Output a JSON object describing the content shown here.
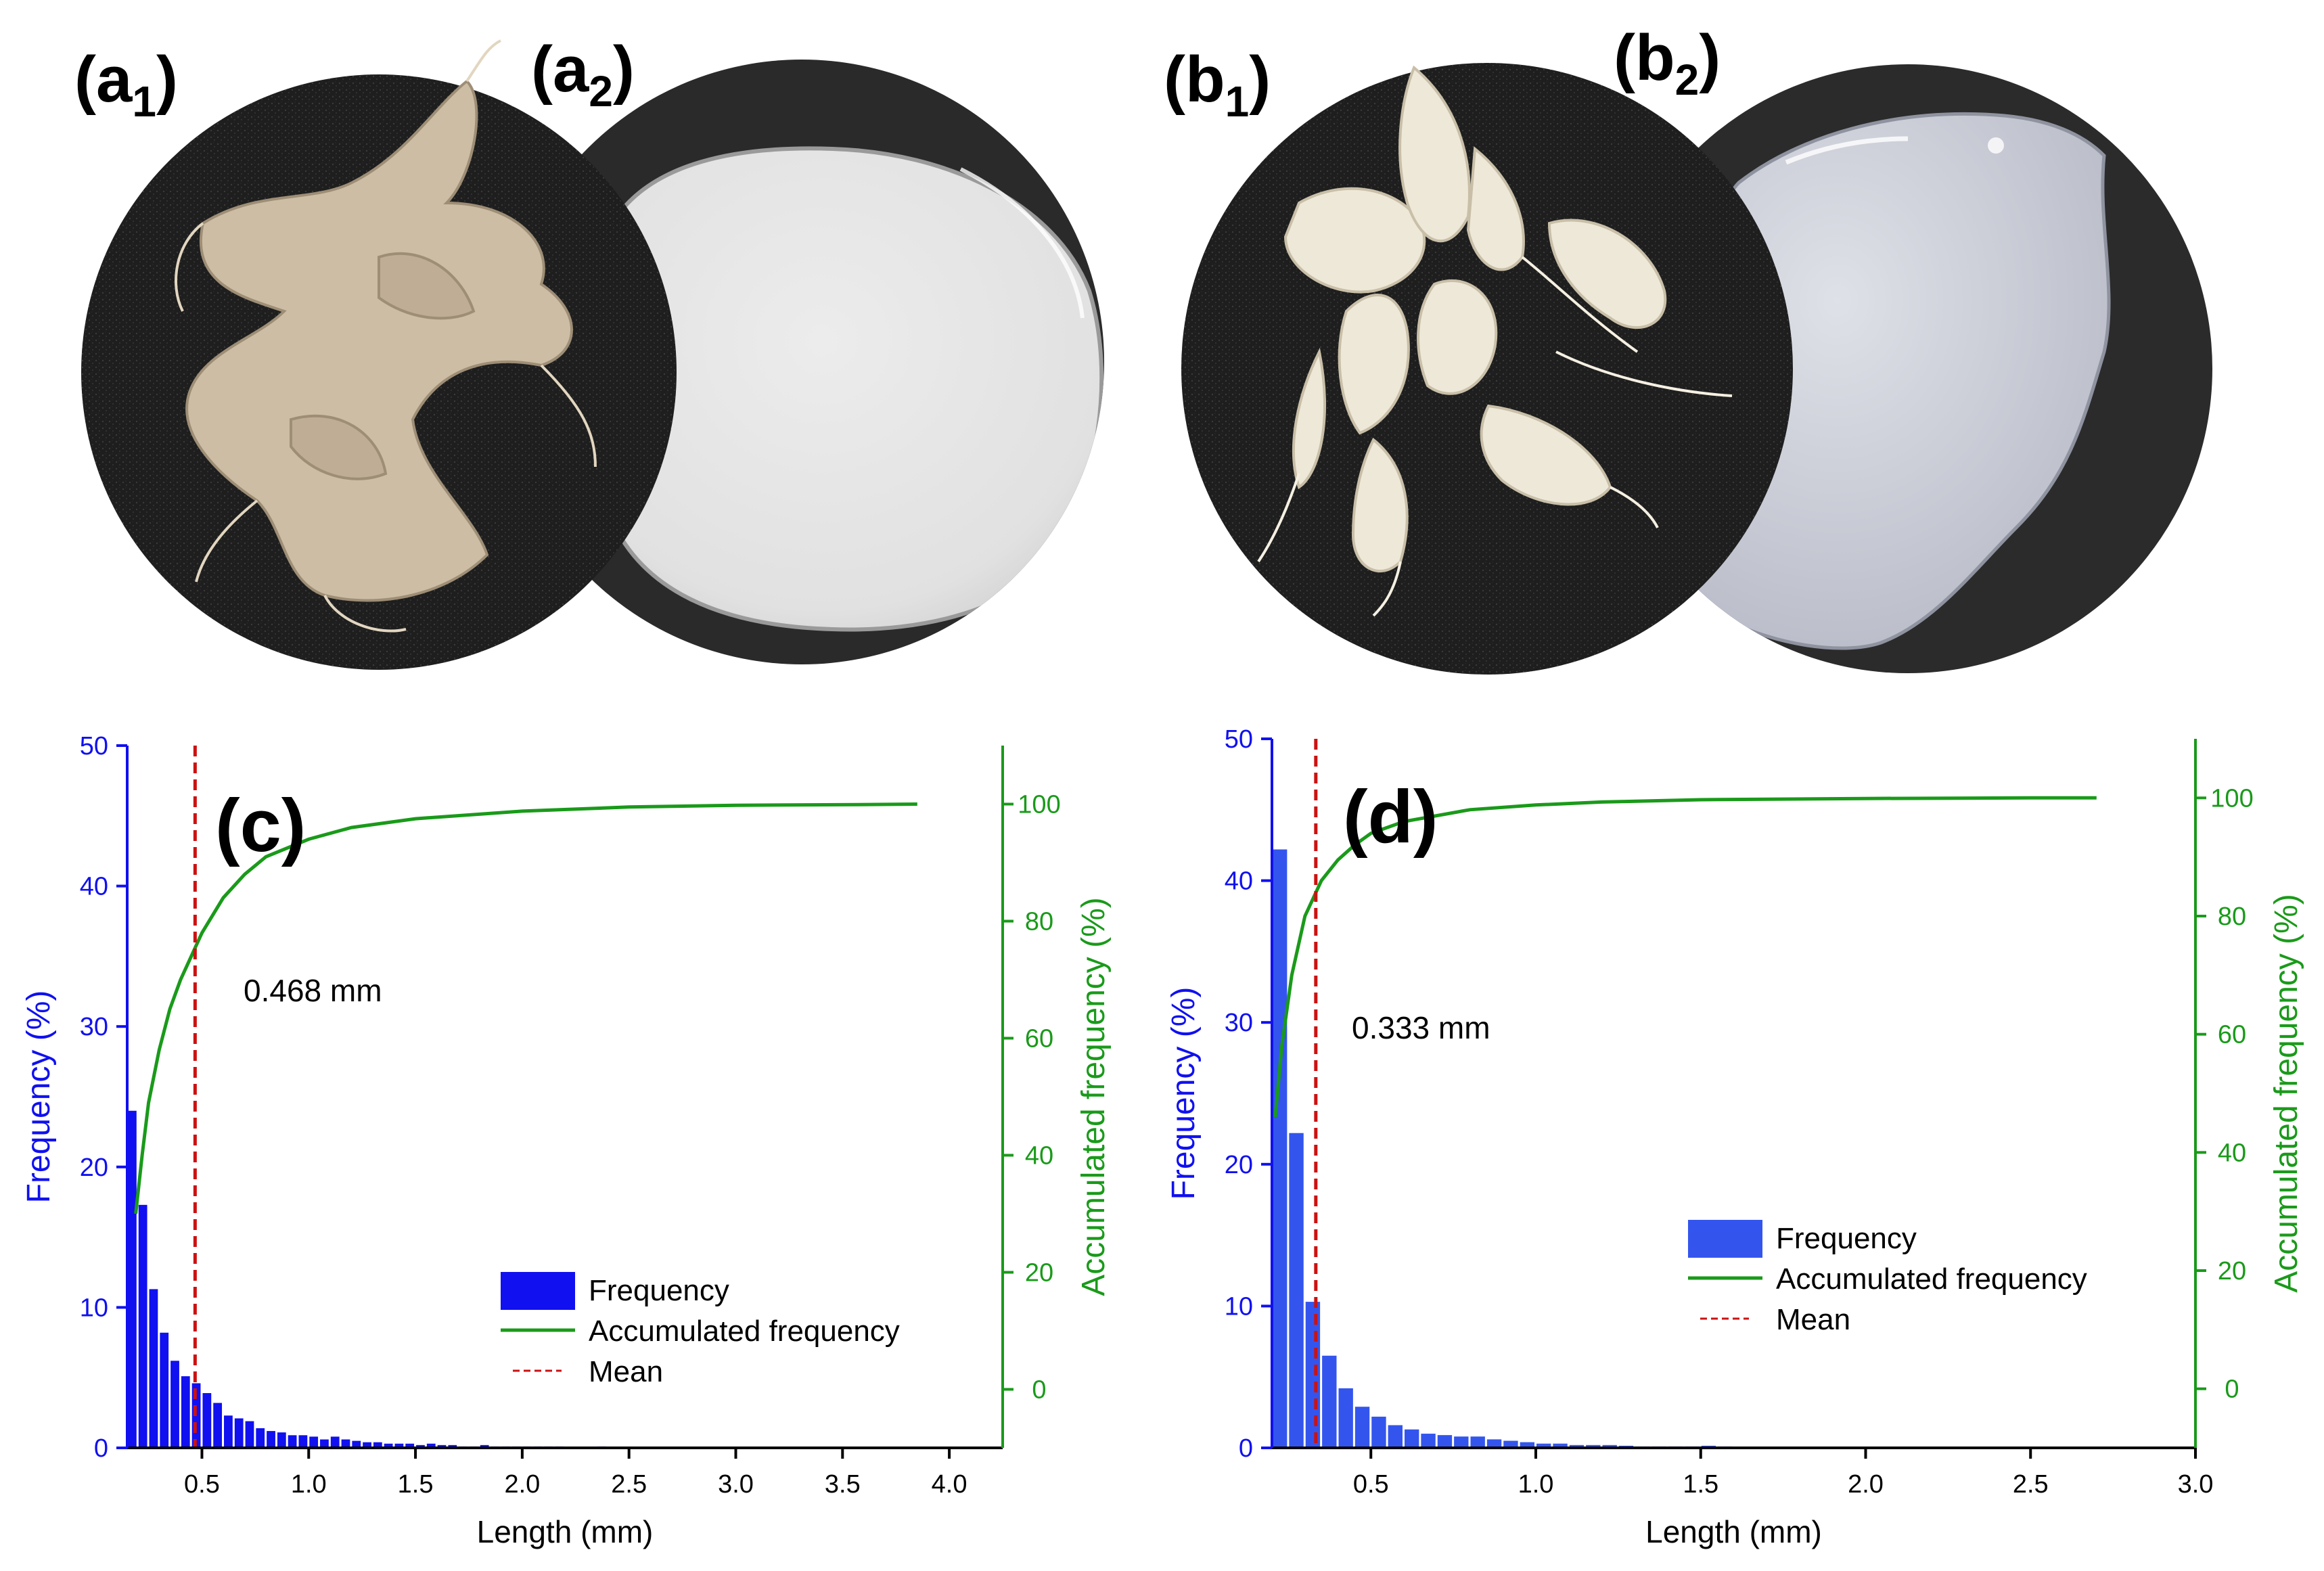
{
  "panels": {
    "a1": {
      "label": "a",
      "sub": "1"
    },
    "a2": {
      "label": "a",
      "sub": "2"
    },
    "b1": {
      "label": "b",
      "sub": "1"
    },
    "b2": {
      "label": "b",
      "sub": "2"
    },
    "c": "(c)",
    "d": "(d)"
  },
  "colors": {
    "frequency": "#1010f0",
    "frequency_d": "#3355ee",
    "accumulated": "#1a9a1a",
    "mean": "#cc1111"
  },
  "chart_data": [
    {
      "type": "bar",
      "panel": "(c)",
      "xlabel": "Length (mm)",
      "ylabel": "Frequency (%)",
      "y2label": "Accumulated frequency (%)",
      "xlim": [
        0.15,
        4.25
      ],
      "ylim": [
        0,
        50
      ],
      "y2lim": [
        -10,
        110
      ],
      "xticks": [
        "0.5",
        "1.0",
        "1.5",
        "2.0",
        "2.5",
        "3.0",
        "3.5",
        "4.0"
      ],
      "xtick_values": [
        0.5,
        1.0,
        1.5,
        2.0,
        2.5,
        3.0,
        3.5,
        4.0
      ],
      "yticks": [
        "0",
        "10",
        "20",
        "30",
        "40",
        "50"
      ],
      "y2ticks": [
        "0",
        "20",
        "40",
        "60",
        "80",
        "100"
      ],
      "bin_width": 0.05,
      "bars": {
        "x": [
          0.175,
          0.225,
          0.275,
          0.325,
          0.375,
          0.425,
          0.475,
          0.525,
          0.575,
          0.625,
          0.675,
          0.725,
          0.775,
          0.825,
          0.875,
          0.925,
          0.975,
          1.025,
          1.075,
          1.125,
          1.175,
          1.225,
          1.275,
          1.325,
          1.375,
          1.425,
          1.475,
          1.525,
          1.575,
          1.625,
          1.675,
          1.725,
          1.775,
          1.825,
          1.875,
          1.925,
          1.975,
          2.025,
          2.075,
          2.125,
          2.175,
          2.225,
          2.275,
          2.325,
          2.375,
          2.425
        ],
        "values": [
          24.0,
          17.3,
          11.3,
          8.2,
          6.2,
          5.1,
          4.6,
          3.9,
          3.2,
          2.3,
          2.1,
          1.9,
          1.4,
          1.2,
          1.1,
          0.9,
          0.9,
          0.8,
          0.6,
          0.8,
          0.6,
          0.5,
          0.4,
          0.4,
          0.3,
          0.3,
          0.3,
          0.2,
          0.3,
          0.2,
          0.2,
          0.1,
          0.1,
          0.2,
          0.1,
          0.1,
          0.1,
          0.1,
          0.1,
          0.1,
          0.1,
          0.05,
          0.05,
          0.05,
          0.1,
          0.05
        ]
      },
      "series": [
        {
          "name": "Accumulated frequency",
          "axis": "right",
          "x": [
            0.19,
            0.22,
            0.25,
            0.3,
            0.35,
            0.4,
            0.45,
            0.5,
            0.6,
            0.7,
            0.8,
            1.0,
            1.2,
            1.5,
            2.0,
            2.5,
            3.0,
            3.5,
            3.85
          ],
          "y": [
            30,
            40,
            49,
            58,
            65,
            70,
            74,
            78,
            84,
            88,
            91,
            94,
            96,
            97.5,
            98.8,
            99.5,
            99.8,
            99.9,
            100
          ]
        }
      ],
      "mean": 0.468,
      "mean_label": "0.468 mm",
      "legend": [
        "Frequency",
        "Accumulated frequency",
        "Mean"
      ],
      "legend_position": "bottom-right"
    },
    {
      "type": "bar",
      "panel": "(d)",
      "xlabel": "Length (mm)",
      "ylabel": "Frequency (%)",
      "y2label": "Accumulated frequency (%)",
      "xlim": [
        0.2,
        3.0
      ],
      "ylim": [
        0,
        50
      ],
      "y2lim": [
        -10,
        110
      ],
      "xticks": [
        "0.5",
        "1.0",
        "1.5",
        "2.0",
        "2.5",
        "3.0"
      ],
      "xtick_values": [
        0.5,
        1.0,
        1.5,
        2.0,
        2.5,
        3.0
      ],
      "yticks": [
        "0",
        "10",
        "20",
        "30",
        "40",
        "50"
      ],
      "y2ticks": [
        "0",
        "20",
        "40",
        "60",
        "80",
        "100"
      ],
      "bin_width": 0.05,
      "bars": {
        "x": [
          0.225,
          0.275,
          0.325,
          0.375,
          0.425,
          0.475,
          0.525,
          0.575,
          0.625,
          0.675,
          0.725,
          0.775,
          0.825,
          0.875,
          0.925,
          0.975,
          1.025,
          1.075,
          1.125,
          1.175,
          1.225,
          1.275,
          1.325,
          1.375,
          1.425,
          1.475,
          1.525,
          1.575,
          1.625,
          1.675,
          1.725,
          1.775
        ],
        "values": [
          42.2,
          22.2,
          10.3,
          6.5,
          4.2,
          2.9,
          2.2,
          1.6,
          1.3,
          1.0,
          0.9,
          0.8,
          0.8,
          0.6,
          0.5,
          0.4,
          0.3,
          0.3,
          0.2,
          0.2,
          0.2,
          0.15,
          0.1,
          0.1,
          0.1,
          0.1,
          0.15,
          0.1,
          0.05,
          0.05,
          0.05,
          0.05
        ]
      },
      "series": [
        {
          "name": "Accumulated frequency",
          "axis": "right",
          "x": [
            0.21,
            0.23,
            0.26,
            0.3,
            0.35,
            0.4,
            0.45,
            0.5,
            0.6,
            0.8,
            1.0,
            1.2,
            1.5,
            2.0,
            2.5,
            2.7
          ],
          "y": [
            46,
            58,
            70,
            80,
            86,
            89.5,
            92,
            94,
            96,
            98,
            98.8,
            99.3,
            99.7,
            99.9,
            100,
            100
          ]
        }
      ],
      "mean": 0.333,
      "mean_label": "0.333 mm",
      "legend": [
        "Frequency",
        "Accumulated frequency",
        "Mean"
      ],
      "legend_position": "bottom-right"
    }
  ]
}
